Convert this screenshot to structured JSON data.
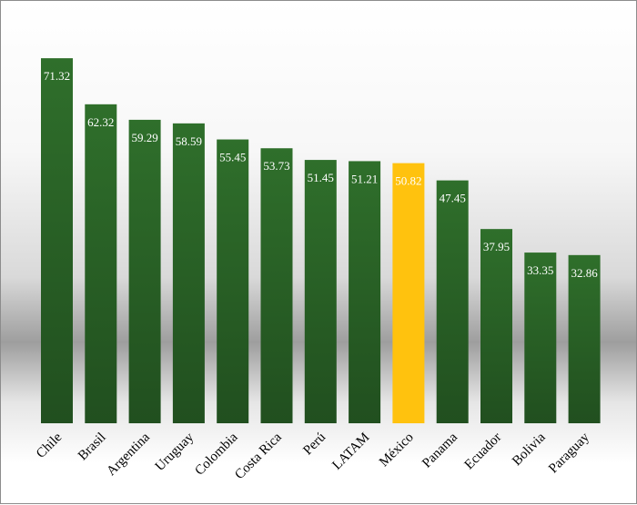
{
  "chart_data": {
    "type": "bar",
    "title": "",
    "xlabel": "",
    "ylabel": "",
    "ylim": [
      0,
      75
    ],
    "grid": false,
    "categories": [
      "Chile",
      "Brasil",
      "Argentina",
      "Uruguay",
      "Colombia",
      "Costa Rica",
      "Perú",
      "LATAM",
      "México",
      "Panama",
      "Ecuador",
      "Bolivia",
      "Paraguay"
    ],
    "values": [
      71.32,
      62.32,
      59.29,
      58.59,
      55.45,
      53.73,
      51.45,
      51.21,
      50.82,
      47.45,
      37.95,
      33.35,
      32.86
    ],
    "value_labels": [
      "71.32",
      "62.32",
      "59.29",
      "58.59",
      "55.45",
      "53.73",
      "51.45",
      "51.21",
      "50.82",
      "47.45",
      "37.95",
      "33.35",
      "32.86"
    ],
    "highlight": "México",
    "colors": {
      "bar": "#2e6b2a",
      "bar_dark": "#1f4d1d",
      "highlight": "#ffc20e"
    }
  }
}
